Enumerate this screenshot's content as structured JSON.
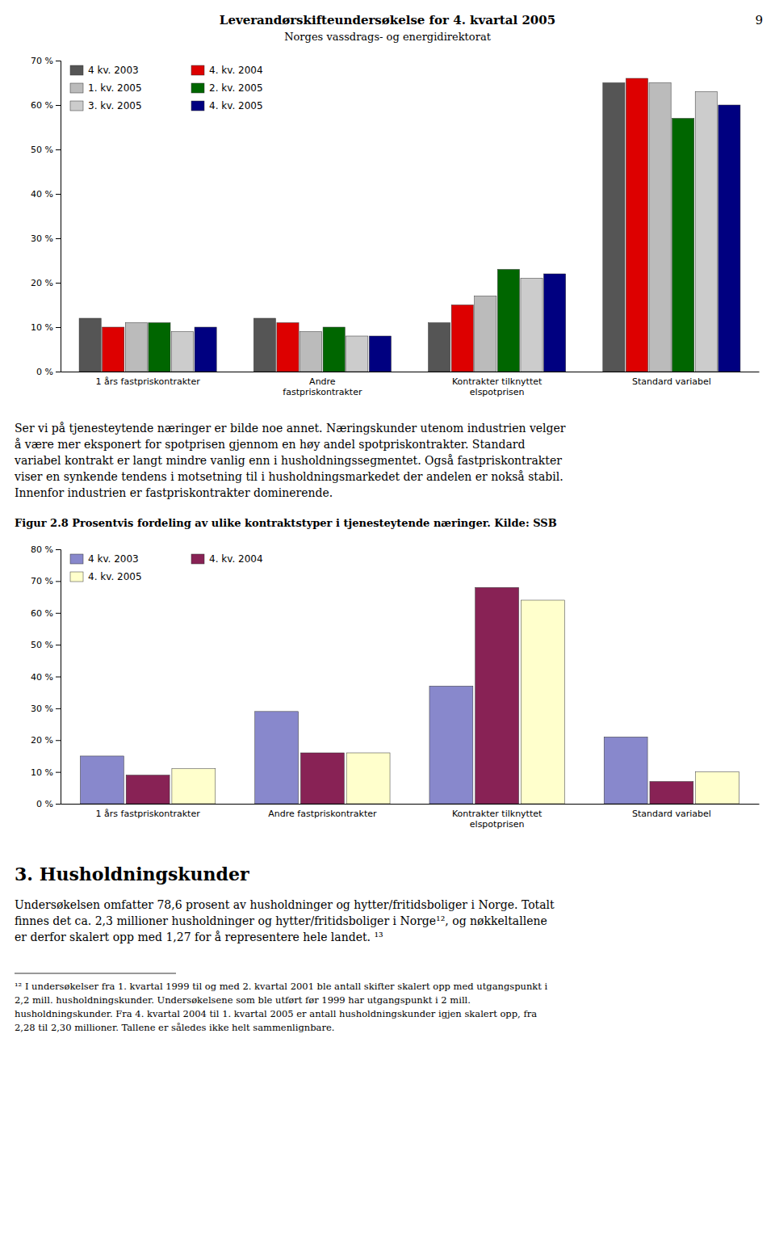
{
  "page_title": "Leverandørskifteundersøkelse for 4. kvartal 2005",
  "page_subtitle": "Norges vassdrags- og energidirektorat",
  "page_number": "9",
  "paragraph_lines": [
    "Ser vi på tjenesteytende næringer er bilde noe annet. Næringskunder utenom industrien velger",
    "å være mer eksponert for spotprisen gjennom en høy andel spotpriskontrakter. Standard",
    "variabel kontrakt er langt mindre vanlig enn i husholdningssegmentet. Også fastpriskontrakter",
    "viser en synkende tendens i motsetning til i husholdningsmarkedet der andelen er nokså stabil.",
    "Innenfor industrien er fastpriskontrakter dominerende."
  ],
  "section_title": "3. Husholdningskunder",
  "section_lines": [
    "Undersøkelsen omfatter 78,6 prosent av husholdninger og hytter/fritidsboliger i Norge. Totalt",
    "finnes det ca. 2,3 millioner husholdninger og hytter/fritidsboliger i Norge¹², og nøkkeltallene",
    "er derfor skalert opp med 1,27 for å representere hele landet. ¹³"
  ],
  "footnote_lines": [
    "¹² I undersøkelser fra 1. kvartal 1999 til og med 2. kvartal 2001 ble antall skifter skalert opp med utgangspunkt i",
    "2,2 mill. husholdningskunder. Undersøkelsene som ble utført før 1999 har utgangspunkt i 2 mill.",
    "husholdningskunder. Fra 4. kvartal 2004 til 1. kvartal 2005 er antall husholdningskunder igjen skalert opp, fra",
    "2,28 til 2,30 millioner. Tallene er således ikke helt sammenlignbare."
  ],
  "chart_data": [
    {
      "type": "bar",
      "categories": [
        "1 års fastpriskontrakter",
        "Andre\nfastpriskontrakter",
        "Kontrakter tilknyttet\nelspotprisen",
        "Standard variabel"
      ],
      "series": [
        {
          "name": "4 kv. 2003",
          "color": "#555555",
          "values": [
            12,
            12,
            11,
            65
          ]
        },
        {
          "name": "4. kv. 2004",
          "color": "#dd0000",
          "values": [
            10,
            11,
            15,
            66
          ]
        },
        {
          "name": "1. kv. 2005",
          "color": "#bbbbbb",
          "values": [
            11,
            9,
            17,
            65
          ]
        },
        {
          "name": "2. kv. 2005",
          "color": "#006600",
          "values": [
            11,
            10,
            23,
            57
          ]
        },
        {
          "name": "3. kv. 2005",
          "color": "#cccccc",
          "values": [
            9,
            8,
            21,
            63
          ]
        },
        {
          "name": "4. kv. 2005",
          "color": "#000080",
          "values": [
            10,
            8,
            22,
            60
          ]
        }
      ],
      "ylim": [
        0,
        70
      ],
      "yticks": [
        {
          "value": 0,
          "label": "0 %"
        },
        {
          "value": 10,
          "label": "10 %"
        },
        {
          "value": 20,
          "label": "20 %"
        },
        {
          "value": 30,
          "label": "30 %"
        },
        {
          "value": 40,
          "label": "40 %"
        },
        {
          "value": 50,
          "label": "50 %"
        },
        {
          "value": 60,
          "label": "60 %"
        },
        {
          "value": 70,
          "label": "70 %"
        }
      ],
      "grid": false,
      "legend": "upper left"
    },
    {
      "type": "bar",
      "title": "Figur 2.8 Prosentvis fordeling av ulike kontraktstyper i tjenesteytende næringer. Kilde: SSB",
      "categories": [
        "1 års fastpriskontrakter",
        "Andre fastpriskontrakter",
        "Kontrakter tilknyttet\nelspotprisen",
        "Standard variabel"
      ],
      "series": [
        {
          "name": "4 kv. 2003",
          "color": "#8888cc",
          "values": [
            15,
            29,
            37,
            21
          ]
        },
        {
          "name": "4. kv. 2004",
          "color": "#882255",
          "values": [
            9,
            16,
            68,
            7
          ]
        },
        {
          "name": "4. kv. 2005",
          "color": "#ffffcc",
          "values": [
            11,
            16,
            64,
            10
          ]
        }
      ],
      "ylim": [
        0,
        80
      ],
      "yticks": [
        {
          "value": 0,
          "label": "0 %"
        },
        {
          "value": 10,
          "label": "10 %"
        },
        {
          "value": 20,
          "label": "20 %"
        },
        {
          "value": 30,
          "label": "30 %"
        },
        {
          "value": 40,
          "label": "40 %"
        },
        {
          "value": 50,
          "label": "50 %"
        },
        {
          "value": 60,
          "label": "60 %"
        },
        {
          "value": 70,
          "label": "70 %"
        },
        {
          "value": 80,
          "label": "80 %"
        }
      ],
      "grid": false,
      "legend": "upper left"
    }
  ]
}
